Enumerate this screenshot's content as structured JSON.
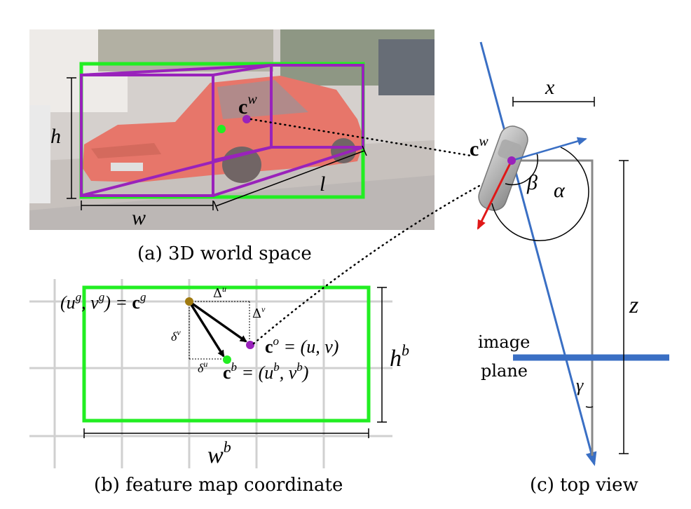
{
  "panel_a": {
    "caption": "(a) 3D world space",
    "label_h": "h",
    "label_w": "w",
    "label_l": "l",
    "center_bold": "c",
    "center_sup": "w"
  },
  "panel_b": {
    "caption": "(b) feature map coordinate",
    "grid_point_lhs": "(u",
    "grid_point_lhs_sup1": "g",
    "grid_point_mid": ", v",
    "grid_point_lhs_sup2": "g",
    "grid_point_eq": ") = ",
    "grid_point_bold": "c",
    "grid_point_sup": "g",
    "delta_u_cap": "Δ",
    "delta_u_cap_sup": "u",
    "delta_v_cap": "Δ",
    "delta_v_cap_sup": "v",
    "delta_v_small": "δ",
    "delta_v_small_sup": "v",
    "delta_u_small": "δ",
    "delta_u_small_sup": "u",
    "obj_bold": "c",
    "obj_sup": "o",
    "obj_rhs": " = (u, v)",
    "box_bold": "c",
    "box_sup": "b",
    "box_rhs1": " = (u",
    "box_rhs_sup1": "b",
    "box_rhs2": ", v",
    "box_rhs_sup2": "b",
    "box_rhs3": ")",
    "height_label": "h",
    "height_sup": "b",
    "width_label": "w",
    "width_sup": "b"
  },
  "panel_c": {
    "caption": "(c) top view",
    "label_x": "x",
    "label_z": "z",
    "label_alpha": "α",
    "label_beta": "β",
    "label_gamma": "γ",
    "center_bold": "c",
    "center_sup": "w",
    "plane_line1": "image",
    "plane_line2": "plane"
  },
  "colors": {
    "green_box": "#22ee22",
    "purple_box": "#9922bb",
    "blue_ray": "#3a6fc4",
    "red_arrow": "#e01818",
    "gray_line": "#888888",
    "gold_point": "#a07a10"
  }
}
